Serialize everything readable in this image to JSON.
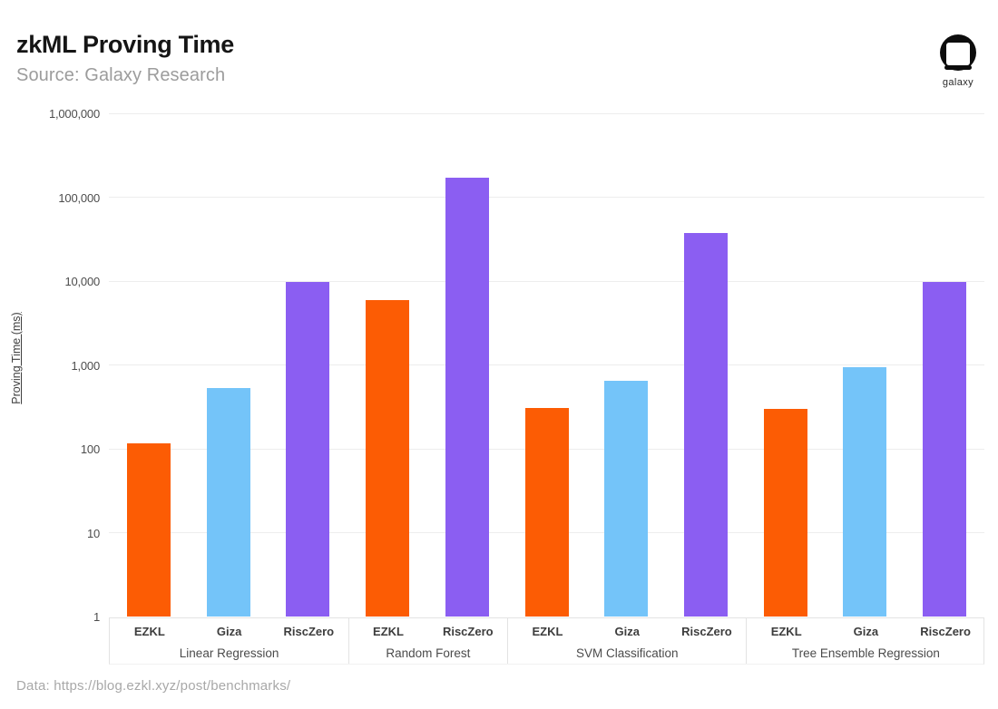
{
  "header": {
    "title": "zkML Proving Time",
    "subtitle": "Source: Galaxy Research"
  },
  "logo": {
    "label": "galaxy"
  },
  "footer": {
    "source_note": "Data: https://blog.ezkl.xyz/post/benchmarks/"
  },
  "chart_data": {
    "type": "bar",
    "title": "zkML Proving Time",
    "subtitle": "Source: Galaxy Research",
    "xlabel": "",
    "ylabel": "Proving Time (ms)",
    "y_scale": "log",
    "ylim": [
      1,
      1000000
    ],
    "y_ticks": [
      "1",
      "10",
      "100",
      "1,000",
      "10,000",
      "100,000",
      "1,000,000"
    ],
    "grid": true,
    "legend": "none",
    "series_colors": {
      "EZKL": "#fc5c04",
      "Giza": "#74c4f9",
      "RiscZero": "#8b5ef2"
    },
    "groups": [
      {
        "label": "Linear Regression",
        "bars": [
          {
            "tool": "EZKL",
            "value": 115
          },
          {
            "tool": "Giza",
            "value": 530
          },
          {
            "tool": "RiscZero",
            "value": 9800
          }
        ]
      },
      {
        "label": "Random Forest",
        "bars": [
          {
            "tool": "EZKL",
            "value": 6000
          },
          {
            "tool": "RiscZero",
            "value": 170000
          }
        ]
      },
      {
        "label": "SVM Classification",
        "bars": [
          {
            "tool": "EZKL",
            "value": 310
          },
          {
            "tool": "Giza",
            "value": 650
          },
          {
            "tool": "RiscZero",
            "value": 37000
          }
        ]
      },
      {
        "label": "Tree Ensemble Regression",
        "bars": [
          {
            "tool": "EZKL",
            "value": 300
          },
          {
            "tool": "Giza",
            "value": 950
          },
          {
            "tool": "RiscZero",
            "value": 9800
          }
        ]
      }
    ]
  }
}
